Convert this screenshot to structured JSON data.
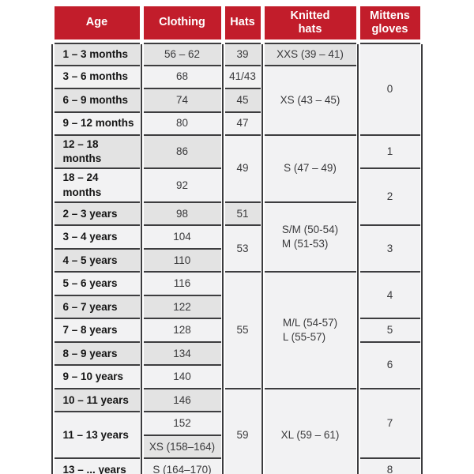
{
  "header": {
    "columns": [
      "Age",
      "Clothing",
      "Hats",
      "Knitted\nhats",
      "Mittens\ngloves"
    ]
  },
  "colors": {
    "header_bg": "#C21D2B",
    "header_text": "#FFFFFF",
    "row_gray": "#E3E3E3",
    "row_light": "#F2F2F3",
    "grid_line": "#3D3D3F",
    "value_text": "#3A3A3C",
    "age_text": "#151515",
    "page_bg": "#FFFFFF"
  },
  "table": {
    "rows": [
      [
        {
          "col": "age",
          "text": "1 – 3 months",
          "shade": "gray"
        },
        {
          "col": "clothing",
          "text": "56 – 62",
          "shade": "gray"
        },
        {
          "col": "hats",
          "text": "39",
          "shade": "gray"
        },
        {
          "col": "knitted",
          "text": "XXS (39 – 41)",
          "shade": "gray"
        },
        {
          "col": "mittens",
          "text": "0",
          "rowspan": 4,
          "shade": "light"
        }
      ],
      [
        {
          "col": "age",
          "text": "3 – 6 months",
          "shade": "light"
        },
        {
          "col": "clothing",
          "text": "68",
          "shade": "light"
        },
        {
          "col": "hats",
          "text": "41/43",
          "shade": "light"
        },
        {
          "col": "knitted",
          "text": "XS (43 – 45)",
          "rowspan": 3,
          "shade": "light"
        }
      ],
      [
        {
          "col": "age",
          "text": "6 – 9 months",
          "shade": "gray"
        },
        {
          "col": "clothing",
          "text": "74",
          "shade": "gray"
        },
        {
          "col": "hats",
          "text": "45",
          "shade": "gray"
        }
      ],
      [
        {
          "col": "age",
          "text": "9 – 12 months",
          "shade": "light"
        },
        {
          "col": "clothing",
          "text": "80",
          "shade": "light"
        },
        {
          "col": "hats",
          "text": "47",
          "shade": "light"
        }
      ],
      [
        {
          "col": "age",
          "text": "12 – 18 months",
          "shade": "gray"
        },
        {
          "col": "clothing",
          "text": "86",
          "shade": "gray"
        },
        {
          "col": "hats",
          "text": "49",
          "rowspan": 2,
          "shade": "light"
        },
        {
          "col": "knitted",
          "text": "S (47 – 49)",
          "rowspan": 2,
          "shade": "light"
        },
        {
          "col": "mittens",
          "text": "1",
          "shade": "light"
        }
      ],
      [
        {
          "col": "age",
          "text": "18 – 24 months",
          "shade": "light"
        },
        {
          "col": "clothing",
          "text": "92",
          "shade": "light"
        },
        {
          "col": "mittens",
          "text": "2",
          "rowspan": 2,
          "shade": "light"
        }
      ],
      [
        {
          "col": "age",
          "text": "2 – 3 years",
          "shade": "gray"
        },
        {
          "col": "clothing",
          "text": "98",
          "shade": "gray"
        },
        {
          "col": "hats",
          "text": "51",
          "shade": "gray"
        },
        {
          "col": "knitted",
          "text": "S/M (50-54)\nM (51-53)",
          "rowspan": 3,
          "shade": "light"
        }
      ],
      [
        {
          "col": "age",
          "text": "3 – 4 years",
          "shade": "light"
        },
        {
          "col": "clothing",
          "text": "104",
          "shade": "light"
        },
        {
          "col": "hats",
          "text": "53",
          "rowspan": 2,
          "shade": "light"
        },
        {
          "col": "mittens",
          "text": "3",
          "rowspan": 2,
          "shade": "light"
        }
      ],
      [
        {
          "col": "age",
          "text": "4 – 5 years",
          "shade": "gray"
        },
        {
          "col": "clothing",
          "text": "110",
          "shade": "gray"
        }
      ],
      [
        {
          "col": "age",
          "text": "5 – 6 years",
          "shade": "light"
        },
        {
          "col": "clothing",
          "text": "116",
          "shade": "light"
        },
        {
          "col": "hats",
          "text": "55",
          "rowspan": 5,
          "shade": "light"
        },
        {
          "col": "knitted",
          "text": "M/L (54-57)\nL (55-57)",
          "rowspan": 5,
          "shade": "light"
        },
        {
          "col": "mittens",
          "text": "4",
          "rowspan": 2,
          "shade": "light"
        }
      ],
      [
        {
          "col": "age",
          "text": "6 – 7 years",
          "shade": "gray"
        },
        {
          "col": "clothing",
          "text": "122",
          "shade": "gray"
        }
      ],
      [
        {
          "col": "age",
          "text": "7 – 8 years",
          "shade": "light"
        },
        {
          "col": "clothing",
          "text": "128",
          "shade": "light"
        },
        {
          "col": "mittens",
          "text": "5",
          "shade": "light"
        }
      ],
      [
        {
          "col": "age",
          "text": "8 – 9 years",
          "shade": "gray"
        },
        {
          "col": "clothing",
          "text": "134",
          "shade": "gray"
        },
        {
          "col": "mittens",
          "text": "6",
          "rowspan": 2,
          "shade": "light"
        }
      ],
      [
        {
          "col": "age",
          "text": "9 – 10 years",
          "shade": "light"
        },
        {
          "col": "clothing",
          "text": "140",
          "shade": "light"
        }
      ],
      [
        {
          "col": "age",
          "text": "10 – 11 years",
          "shade": "gray"
        },
        {
          "col": "clothing",
          "text": "146",
          "shade": "gray"
        },
        {
          "col": "hats",
          "text": "59",
          "rowspan": 4,
          "shade": "light"
        },
        {
          "col": "knitted",
          "text": "XL (59 – 61)",
          "rowspan": 4,
          "shade": "light"
        },
        {
          "col": "mittens",
          "text": "7",
          "rowspan": 3,
          "shade": "light"
        }
      ],
      [
        {
          "col": "age",
          "text": "11 – 13 years",
          "rowspan": 2,
          "shade": "light"
        },
        {
          "col": "clothing",
          "text": "152",
          "shade": "light"
        }
      ],
      [
        {
          "col": "clothing",
          "text": "XS (158–164)",
          "shade": "gray"
        }
      ],
      [
        {
          "col": "age",
          "text": "13 – ... years",
          "shade": "light"
        },
        {
          "col": "clothing",
          "text": "S (164–170)",
          "shade": "light"
        },
        {
          "col": "mittens",
          "text": "8",
          "shade": "light"
        }
      ]
    ]
  },
  "chart_data": {
    "type": "table",
    "columns": [
      "Age",
      "Clothing",
      "Hats",
      "Knitted hats",
      "Mittens gloves"
    ],
    "rows": [
      [
        "1 – 3 months",
        "56 – 62",
        "39",
        "XXS (39 – 41)",
        "0"
      ],
      [
        "3 – 6 months",
        "68",
        "41/43",
        "XS (43 – 45)",
        "0"
      ],
      [
        "6 – 9 months",
        "74",
        "45",
        "XS (43 – 45)",
        "0"
      ],
      [
        "9 – 12 months",
        "80",
        "47",
        "XS (43 – 45)",
        "0"
      ],
      [
        "12 – 18 months",
        "86",
        "49",
        "S (47 – 49)",
        "1"
      ],
      [
        "18 – 24 months",
        "92",
        "49",
        "S (47 – 49)",
        "2"
      ],
      [
        "2 – 3 years",
        "98",
        "51",
        "S/M (50-54) M (51-53)",
        "2"
      ],
      [
        "3 – 4 years",
        "104",
        "53",
        "S/M (50-54) M (51-53)",
        "3"
      ],
      [
        "4 – 5 years",
        "110",
        "53",
        "S/M (50-54) M (51-53)",
        "3"
      ],
      [
        "5 – 6 years",
        "116",
        "55",
        "M/L (54-57) L (55-57)",
        "4"
      ],
      [
        "6 – 7 years",
        "122",
        "55",
        "M/L (54-57) L (55-57)",
        "4"
      ],
      [
        "7 – 8 years",
        "128",
        "55",
        "M/L (54-57) L (55-57)",
        "5"
      ],
      [
        "8 – 9 years",
        "134",
        "55",
        "M/L (54-57) L (55-57)",
        "6"
      ],
      [
        "9 – 10 years",
        "140",
        "55",
        "M/L (54-57) L (55-57)",
        "6"
      ],
      [
        "10 – 11 years",
        "146",
        "59",
        "XL (59 – 61)",
        "7"
      ],
      [
        "11 – 13 years",
        "152",
        "59",
        "XL (59 – 61)",
        "7"
      ],
      [
        "11 – 13 years",
        "XS (158–164)",
        "59",
        "XL (59 – 61)",
        "7"
      ],
      [
        "13 – ... years",
        "S (164–170)",
        "59",
        "XL (59 – 61)",
        "8"
      ]
    ]
  }
}
